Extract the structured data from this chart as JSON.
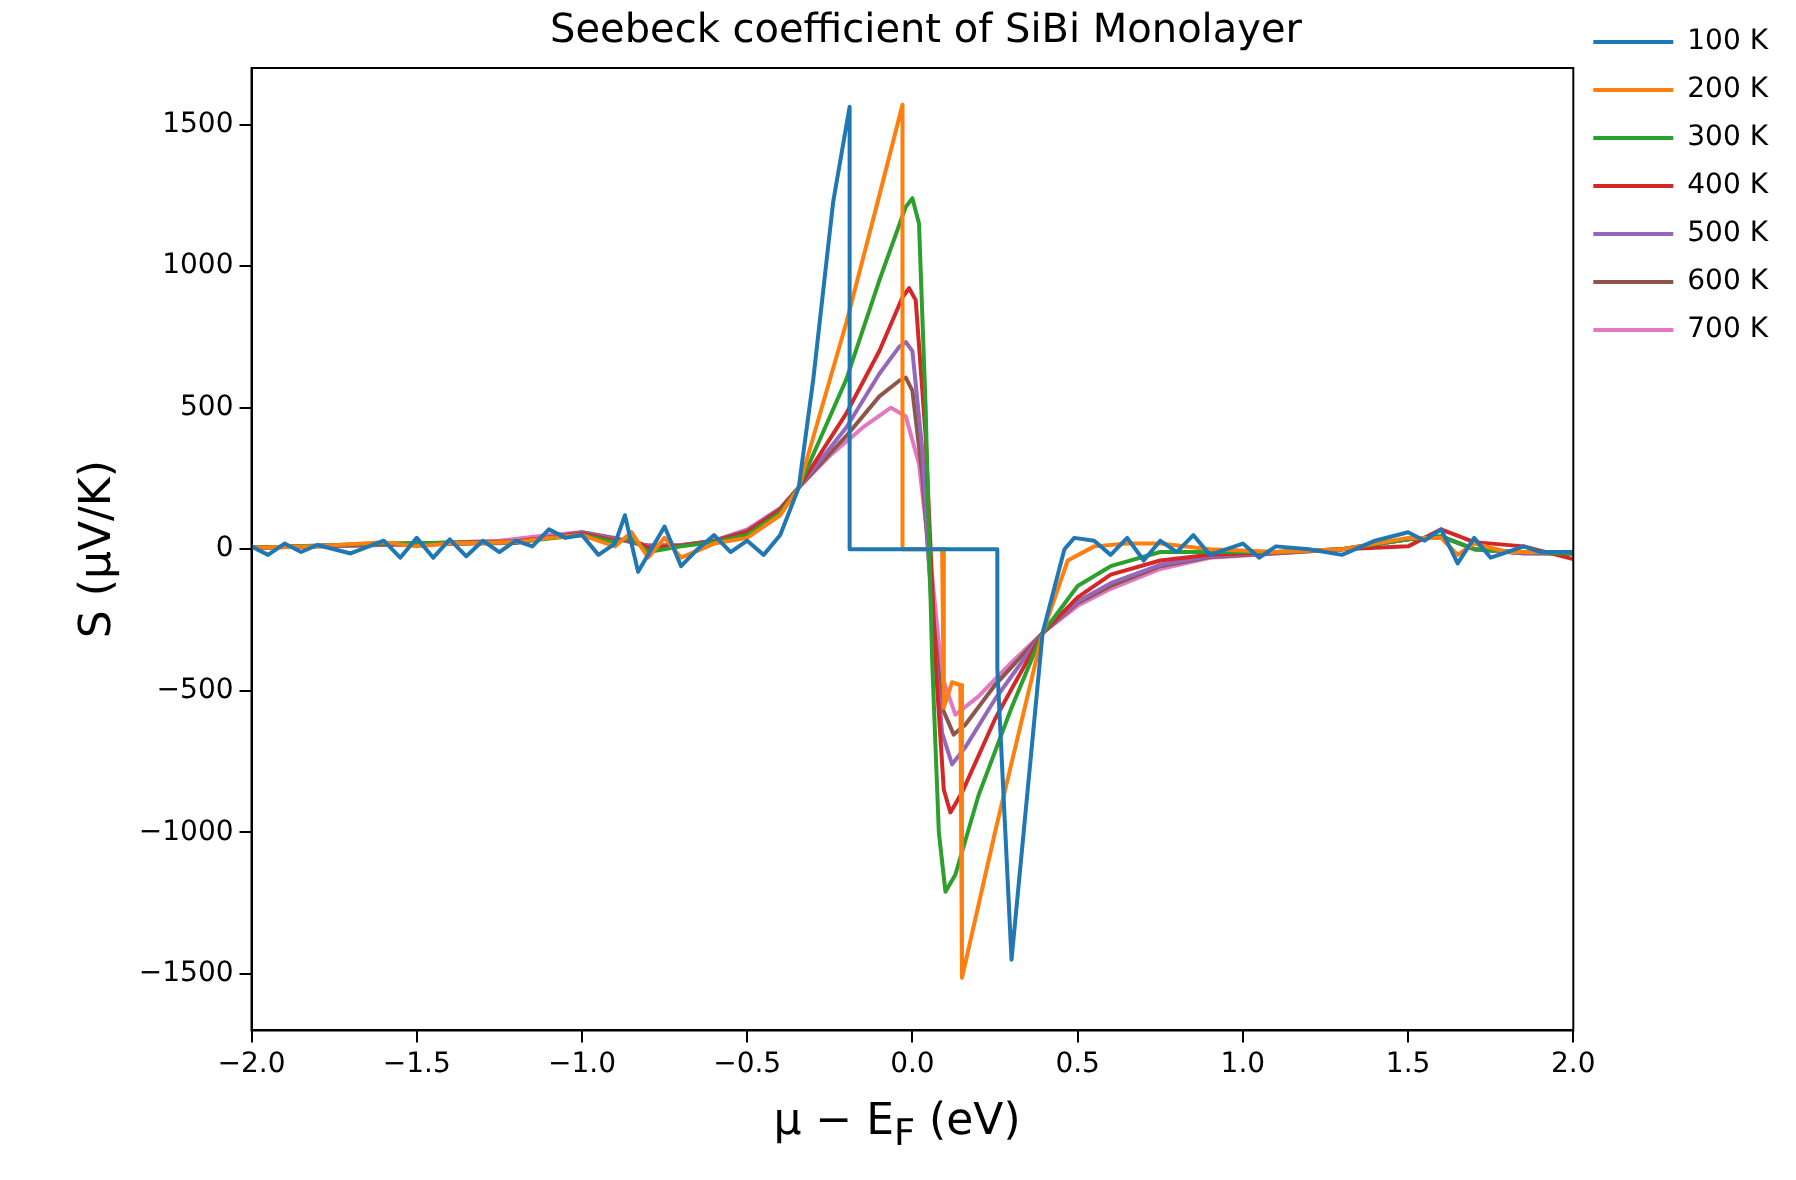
{
  "chart_data": {
    "type": "line",
    "title": "Seebeck coefficient of SiBi Monolayer",
    "xlabel": "μ − E$_{F}$ (eV)",
    "ylabel": "S (μV/K)",
    "xlim": [
      -2,
      2
    ],
    "ylim": [
      -1700,
      1700
    ],
    "xticks": [
      {
        "value": -2,
        "label": "−2.0"
      },
      {
        "value": -1.5,
        "label": "−1.5"
      },
      {
        "value": -1,
        "label": "−1.0"
      },
      {
        "value": -0.5,
        "label": "−0.5"
      },
      {
        "value": 0,
        "label": "0.0"
      },
      {
        "value": 0.5,
        "label": "0.5"
      },
      {
        "value": 1,
        "label": "1.0"
      },
      {
        "value": 1.5,
        "label": "1.5"
      },
      {
        "value": 2,
        "label": "2.0"
      }
    ],
    "yticks": [
      {
        "value": -1500,
        "label": "−1500"
      },
      {
        "value": -1000,
        "label": "−1000"
      },
      {
        "value": -500,
        "label": "−500"
      },
      0,
      500,
      1000,
      1500
    ],
    "grid": false,
    "legend": "right",
    "marker": "none",
    "line_style": "solid",
    "series": [
      {
        "name": "100 K",
        "color": "#1f77b4",
        "x": [
          -2,
          -1.95,
          -1.9,
          -1.85,
          -1.8,
          -1.7,
          -1.6,
          -1.55,
          -1.5,
          -1.45,
          -1.4,
          -1.35,
          -1.3,
          -1.25,
          -1.2,
          -1.15,
          -1.1,
          -1.05,
          -1.0,
          -0.95,
          -0.9,
          -0.87,
          -0.83,
          -0.78,
          -0.75,
          -0.7,
          -0.65,
          -0.6,
          -0.55,
          -0.5,
          -0.45,
          -0.4,
          -0.344,
          -0.3,
          -0.24,
          -0.19,
          -0.19,
          0.257,
          0.257,
          0.3,
          0.394,
          0.46,
          0.49,
          0.55,
          0.6,
          0.65,
          0.7,
          0.75,
          0.8,
          0.85,
          0.9,
          1.0,
          1.05,
          1.1,
          1.2,
          1.3,
          1.4,
          1.5,
          1.55,
          1.6,
          1.65,
          1.7,
          1.75,
          1.8,
          1.85,
          1.9,
          2.0
        ],
        "values": [
          10,
          -20,
          20,
          -10,
          15,
          -15,
          30,
          -30,
          40,
          -30,
          35,
          -25,
          30,
          -10,
          30,
          10,
          70,
          40,
          50,
          -20,
          20,
          120,
          -80,
          20,
          80,
          -60,
          0,
          50,
          -10,
          30,
          -20,
          50,
          218,
          600,
          1225,
          1563,
          0,
          0,
          -420,
          -1450,
          -296,
          0,
          40,
          30,
          -20,
          40,
          -40,
          30,
          -10,
          50,
          -20,
          20,
          -30,
          10,
          0,
          -20,
          30,
          60,
          30,
          70,
          -50,
          40,
          -30,
          -10,
          10,
          -10,
          -10
        ]
      },
      {
        "name": "200 K",
        "color": "#ff7f0e",
        "x": [
          -2,
          -1.8,
          -1.6,
          -1.5,
          -1.4,
          -1.2,
          -1.1,
          -1.0,
          -0.9,
          -0.85,
          -0.8,
          -0.75,
          -0.7,
          -0.6,
          -0.5,
          -0.4,
          -0.344,
          -0.2,
          -0.1,
          -0.03,
          -0.03,
          0.09,
          0.095,
          0.12,
          0.145,
          0.15,
          0.25,
          0.394,
          0.47,
          0.55,
          0.65,
          0.75,
          0.9,
          1.1,
          1.3,
          1.5,
          1.6,
          1.65,
          1.7,
          1.8,
          2.0
        ],
        "values": [
          5,
          10,
          25,
          10,
          20,
          25,
          40,
          50,
          10,
          60,
          -30,
          40,
          -30,
          20,
          40,
          120,
          218,
          800,
          1250,
          1570,
          0,
          0,
          -560,
          -470,
          -480,
          -1514,
          -1000,
          -296,
          -40,
          10,
          20,
          20,
          0,
          -10,
          0,
          40,
          40,
          -20,
          20,
          -10,
          -10
        ]
      },
      {
        "name": "300 K",
        "color": "#2ca02c",
        "x": [
          -2,
          -1.6,
          -1.2,
          -1.0,
          -0.9,
          -0.85,
          -0.8,
          -0.7,
          -0.6,
          -0.5,
          -0.4,
          -0.344,
          -0.2,
          -0.1,
          -0.02,
          0.0,
          0.02,
          0.04,
          0.06,
          0.08,
          0.1,
          0.13,
          0.2,
          0.3,
          0.394,
          0.5,
          0.6,
          0.75,
          0.9,
          1.1,
          1.3,
          1.5,
          1.6,
          1.7,
          1.85,
          2.0
        ],
        "values": [
          5,
          20,
          25,
          50,
          25,
          40,
          -10,
          10,
          25,
          50,
          130,
          218,
          600,
          950,
          1210,
          1240,
          1150,
          500,
          -400,
          -1000,
          -1210,
          -1150,
          -870,
          -560,
          -296,
          -130,
          -60,
          -10,
          -10,
          -10,
          0,
          35,
          45,
          0,
          -10,
          -15
        ]
      },
      {
        "name": "400 K",
        "color": "#d62728",
        "x": [
          -2,
          -1.6,
          -1.2,
          -1.0,
          -0.9,
          -0.85,
          -0.8,
          -0.7,
          -0.6,
          -0.5,
          -0.4,
          -0.344,
          -0.2,
          -0.1,
          -0.03,
          -0.01,
          0.01,
          0.04,
          0.07,
          0.095,
          0.115,
          0.15,
          0.25,
          0.394,
          0.5,
          0.6,
          0.75,
          0.9,
          1.1,
          1.3,
          1.5,
          1.6,
          1.7,
          1.85,
          2.0
        ],
        "values": [
          5,
          18,
          28,
          55,
          30,
          35,
          5,
          12,
          28,
          60,
          140,
          218,
          480,
          700,
          890,
          922,
          880,
          400,
          -400,
          -850,
          -930,
          -860,
          -600,
          -296,
          -170,
          -90,
          -40,
          -20,
          -10,
          0,
          10,
          70,
          25,
          10,
          -35
        ]
      },
      {
        "name": "500 K",
        "color": "#9467bd",
        "x": [
          -2,
          -1.6,
          -1.2,
          -1.0,
          -0.9,
          -0.85,
          -0.8,
          -0.7,
          -0.6,
          -0.5,
          -0.4,
          -0.344,
          -0.2,
          -0.1,
          -0.04,
          -0.02,
          0.0,
          0.03,
          0.06,
          0.09,
          0.12,
          0.16,
          0.25,
          0.394,
          0.5,
          0.6,
          0.75,
          0.9,
          1.1,
          1.3,
          1.5,
          1.6,
          1.7,
          1.85,
          2.0
        ],
        "values": [
          5,
          16,
          25,
          58,
          35,
          30,
          10,
          13,
          29,
          62,
          142,
          218,
          430,
          620,
          715,
          732,
          700,
          350,
          -250,
          -650,
          -760,
          -700,
          -530,
          -296,
          -185,
          -120,
          -55,
          -25,
          -12,
          0,
          35,
          45,
          0,
          -13,
          -15
        ]
      },
      {
        "name": "600 K",
        "color": "#8c564b",
        "x": [
          -2,
          -1.6,
          -1.2,
          -1.0,
          -0.9,
          -0.85,
          -0.8,
          -0.7,
          -0.6,
          -0.5,
          -0.4,
          -0.344,
          -0.2,
          -0.1,
          -0.04,
          -0.02,
          0.0,
          0.03,
          0.06,
          0.09,
          0.125,
          0.16,
          0.25,
          0.394,
          0.5,
          0.6,
          0.75,
          0.9,
          1.1,
          1.3,
          1.5,
          1.6,
          1.7,
          1.85,
          2.0
        ],
        "values": [
          5,
          15,
          22,
          60,
          38,
          25,
          12,
          14,
          30,
          65,
          143,
          218,
          400,
          540,
          595,
          606,
          560,
          260,
          -200,
          -560,
          -655,
          -620,
          -480,
          -296,
          -190,
          -130,
          -60,
          -28,
          -14,
          0,
          35,
          45,
          0,
          -14,
          -15
        ]
      },
      {
        "name": "700 K",
        "color": "#e377c2",
        "x": [
          -2,
          -1.75,
          -1.5,
          -1.25,
          -1.1,
          -1.0,
          -0.9,
          -0.82,
          -0.7,
          -0.6,
          -0.5,
          -0.4,
          -0.344,
          -0.25,
          -0.15,
          -0.065,
          -0.02,
          0.02,
          0.06,
          0.09,
          0.13,
          0.2,
          0.3,
          0.394,
          0.5,
          0.6,
          0.75,
          0.9,
          1.1,
          1.3,
          1.5,
          1.6,
          1.7,
          1.85,
          2.0
        ],
        "values": [
          5,
          15,
          20,
          30,
          50,
          60,
          40,
          14,
          15,
          30,
          70,
          145,
          218,
          330,
          430,
          500,
          470,
          300,
          -100,
          -450,
          -585,
          -520,
          -400,
          -296,
          -200,
          -140,
          -70,
          -30,
          -15,
          0,
          35,
          45,
          0,
          -15,
          -15
        ]
      }
    ]
  }
}
